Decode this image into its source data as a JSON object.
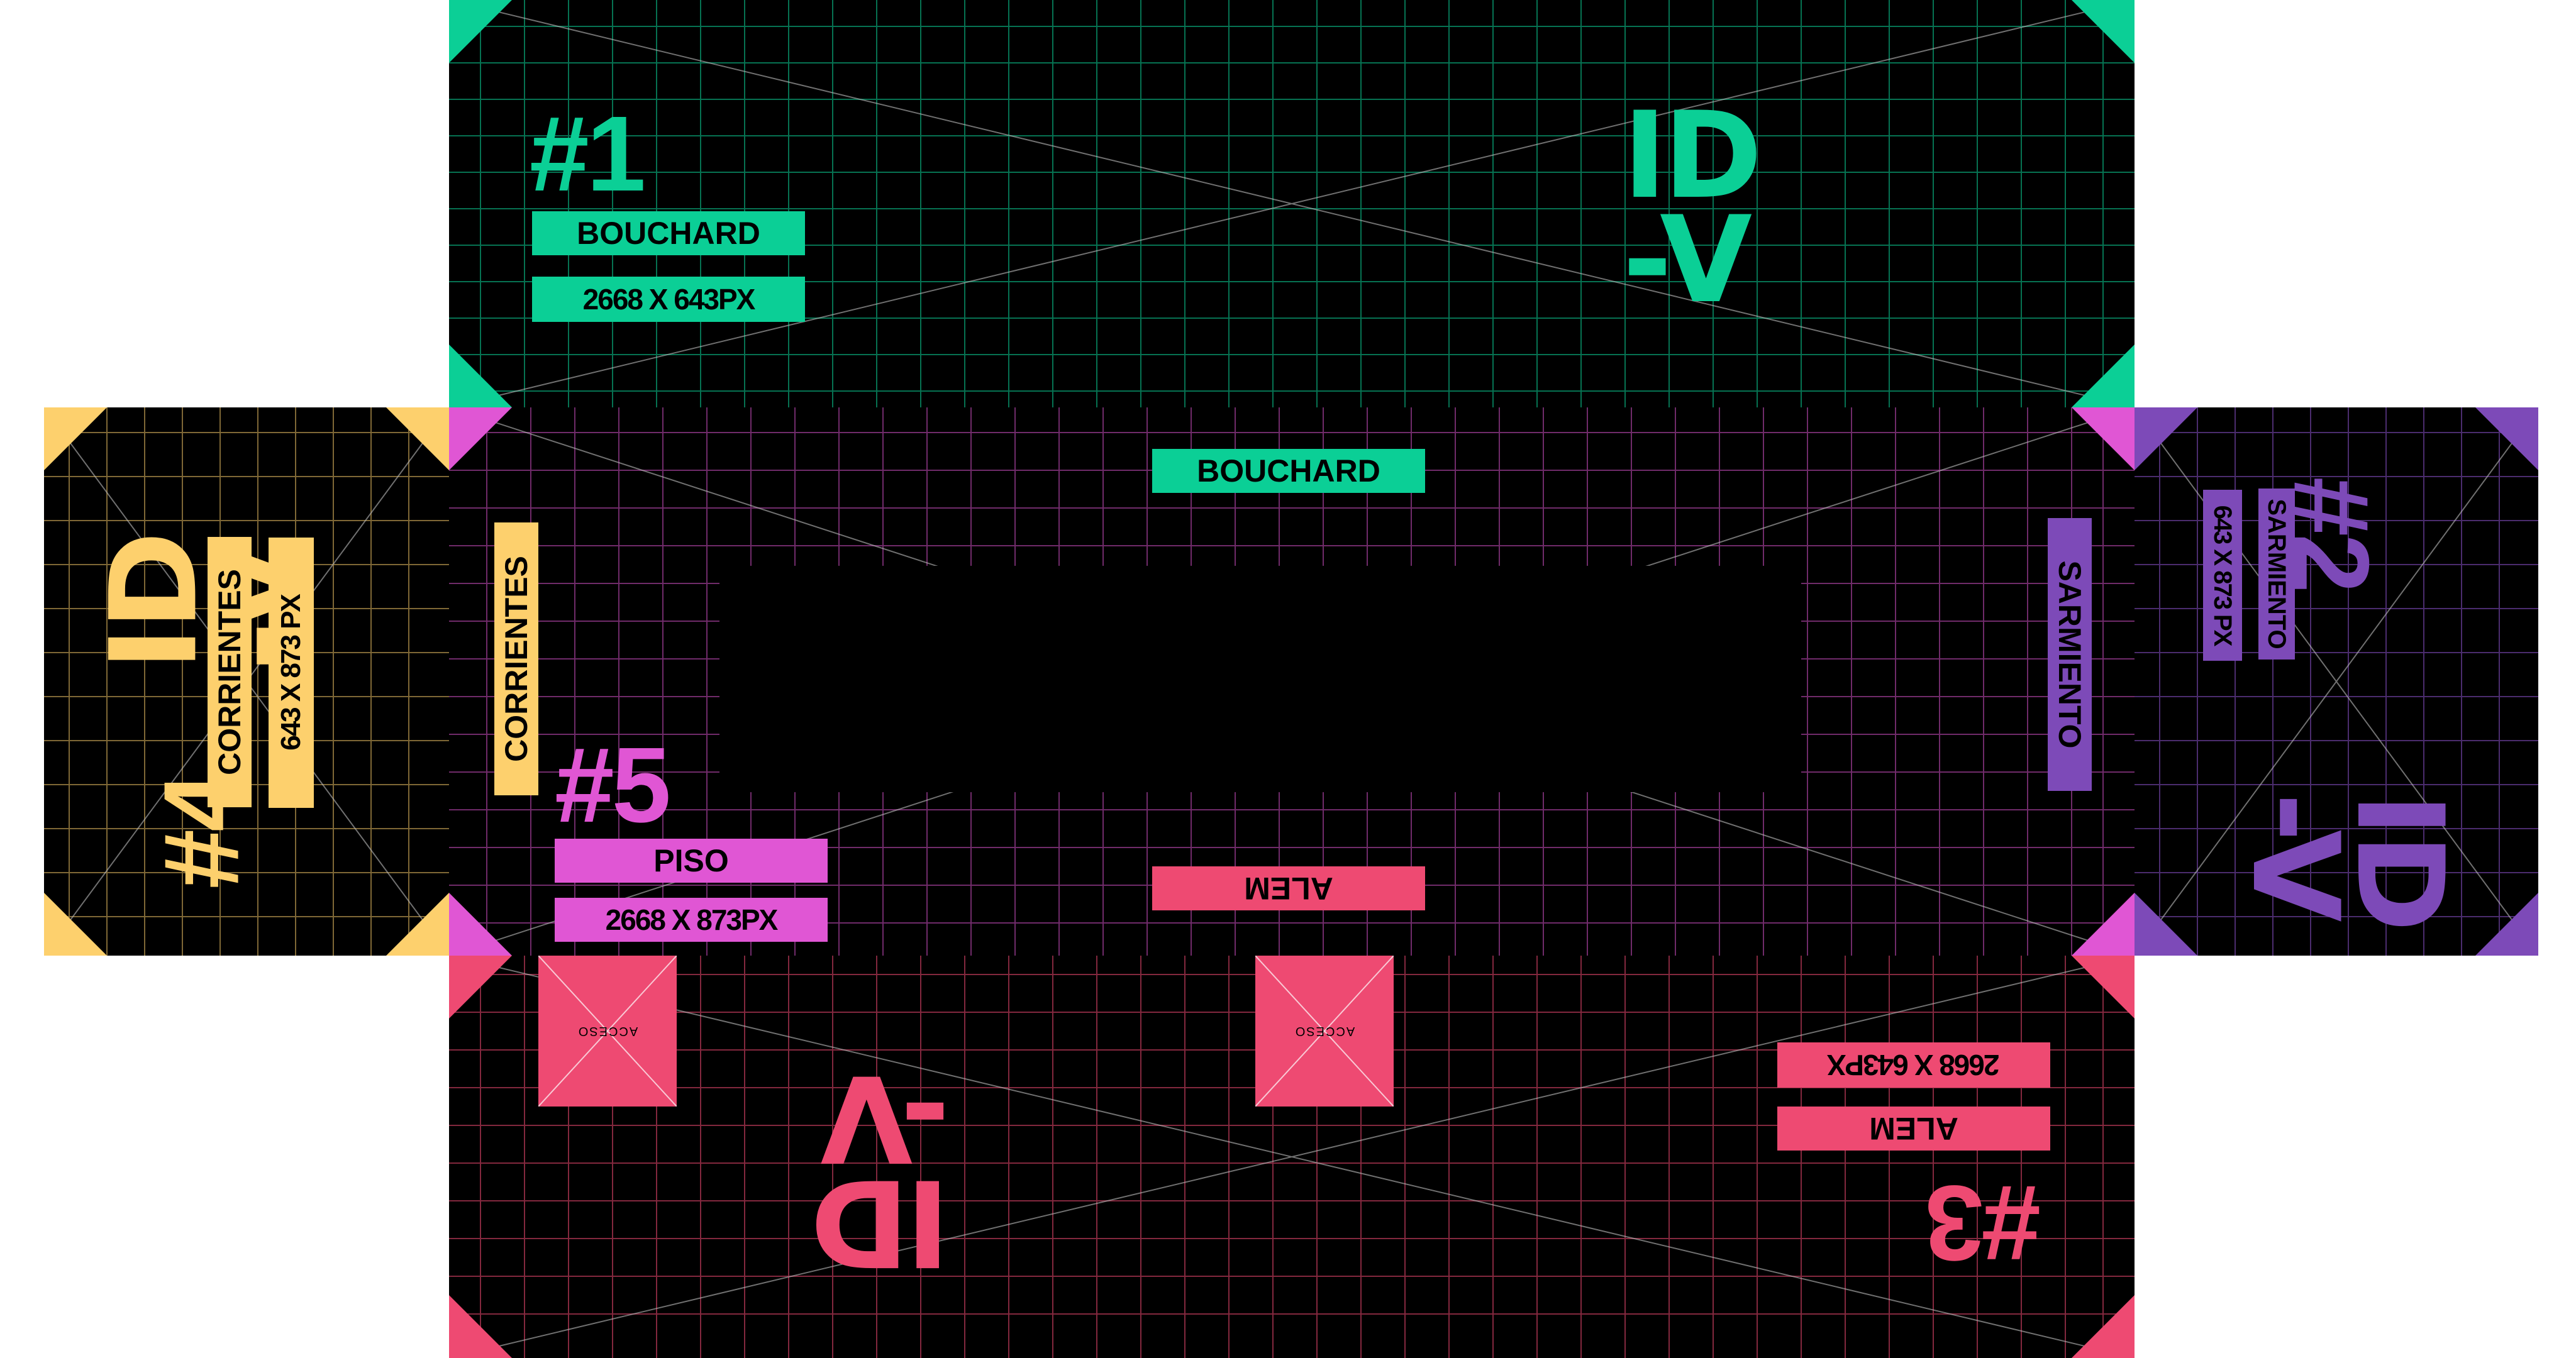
{
  "colors": {
    "green": "#0bcf96",
    "magenta": "#e056d4",
    "pink": "#ee4a72",
    "purple": "#7d4ab8",
    "yellow": "#fdd06d",
    "background": "#000000"
  },
  "panel1": {
    "number": "#1",
    "logo_line1": "ID",
    "logo_line2": "-V",
    "street": "BOUCHARD",
    "size": "2668 X 643PX"
  },
  "panel2": {
    "number": "#2",
    "logo_line1": "ID",
    "logo_line2": "-V",
    "street": "SARMIENTO",
    "size": "643 X 873 PX"
  },
  "panel3": {
    "number": "#3",
    "logo_line1": "ID",
    "logo_line2": "-V",
    "street": "ALEM",
    "size": "2668 X 643PX",
    "access_label": "ACCESO"
  },
  "panel4": {
    "number": "#4",
    "logo_line1": "ID",
    "logo_line2": "-V",
    "street": "CORRIENTES",
    "size": "643 X 873 PX"
  },
  "panel5": {
    "number": "#5",
    "label": "PISO",
    "size": "2668 X 873PX",
    "edge_top": "BOUCHARD",
    "edge_right": "SARMIENTO",
    "edge_bottom": "ALEM",
    "edge_left": "CORRIENTES"
  }
}
